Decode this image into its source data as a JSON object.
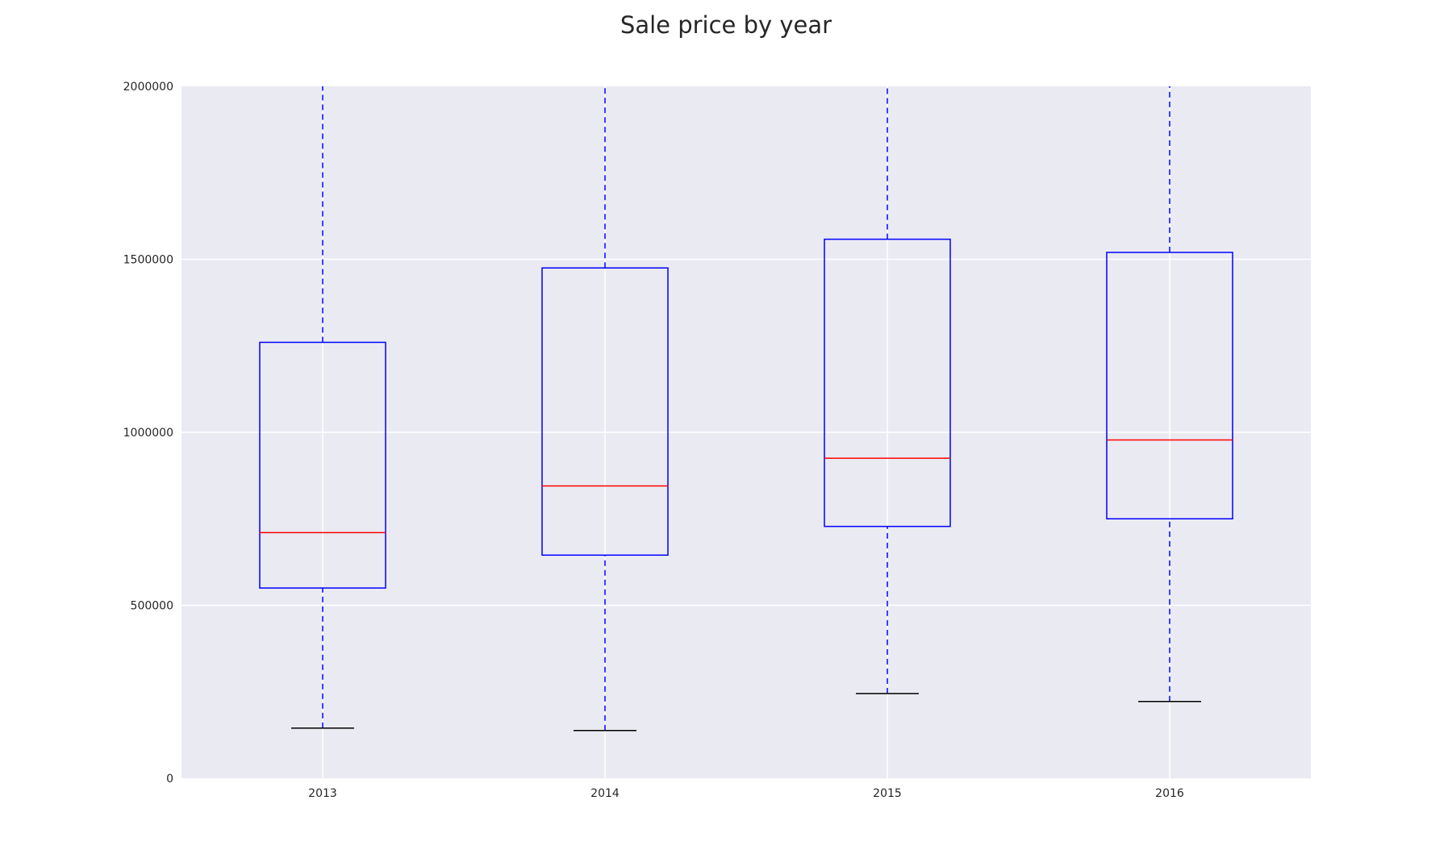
{
  "chart_data": {
    "type": "box",
    "title": "Sale price by year",
    "xlabel": "",
    "ylabel": "",
    "categories": [
      "2013",
      "2014",
      "2015",
      "2016"
    ],
    "ylim": [
      0,
      2000000
    ],
    "yticks": [
      0,
      500000,
      1000000,
      1500000,
      2000000
    ],
    "ytick_labels": [
      "0",
      "500000",
      "1000000",
      "1500000",
      "2000000"
    ],
    "grid": true,
    "boxes": [
      {
        "category": "2013",
        "whisker_low": 145000,
        "q1": 550000,
        "median": 710000,
        "q3": 1260000,
        "whisker_high": 2000000
      },
      {
        "category": "2014",
        "whisker_low": 138000,
        "q1": 645000,
        "median": 845000,
        "q3": 1475000,
        "whisker_high": 2000000
      },
      {
        "category": "2015",
        "whisker_low": 245000,
        "q1": 728000,
        "median": 925000,
        "q3": 1558000,
        "whisker_high": 2000000
      },
      {
        "category": "2016",
        "whisker_low": 222000,
        "q1": 750000,
        "median": 978000,
        "q3": 1520000,
        "whisker_high": 2000000
      }
    ],
    "colors": {
      "plot_background": "#EAEAF2",
      "grid": "#FFFFFF",
      "box": "#0000FF",
      "median": "#FF0000",
      "cap": "#000000"
    }
  }
}
